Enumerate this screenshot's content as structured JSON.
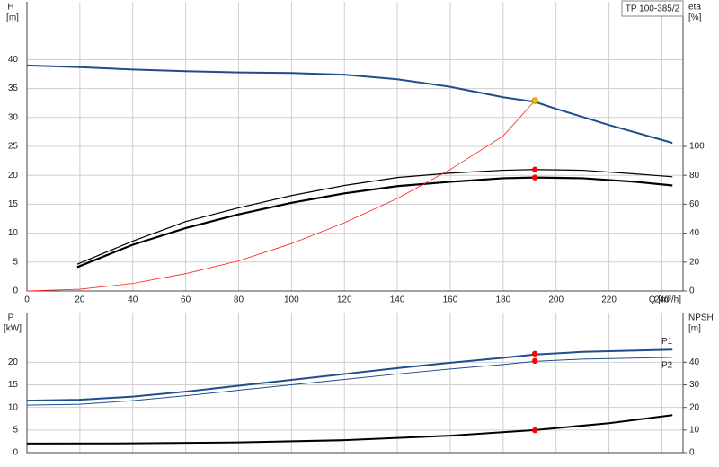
{
  "chart_data": [
    {
      "type": "line",
      "title": "TP 100-385/2",
      "ylabel": "H",
      "yunit": "[m]",
      "y2label": "eta",
      "y2unit": "[%]",
      "xlabel": "Q [m³/h]",
      "xlim": [
        0,
        248
      ],
      "xticks": [
        0,
        20,
        40,
        60,
        80,
        100,
        120,
        140,
        160,
        180,
        200,
        220,
        240
      ],
      "x_tick_labels": true,
      "ylim": [
        0,
        50
      ],
      "yticks": [
        0,
        5,
        10,
        15,
        20,
        25,
        30,
        35,
        40
      ],
      "y2lim": [
        0,
        200
      ],
      "y2ticks": [
        0,
        20,
        40,
        60,
        80,
        100
      ],
      "grid": true,
      "series": [
        {
          "color": "#1f4e8c",
          "width": 2,
          "axis": "y",
          "x": [
            0,
            20,
            40,
            60,
            80,
            100,
            120,
            140,
            160,
            180,
            192,
            200,
            220,
            244
          ],
          "values": [
            39,
            38.7,
            38.3,
            38,
            37.8,
            37.7,
            37.4,
            36.6,
            35.3,
            33.5,
            32.7,
            31.5,
            28.7,
            25.6
          ]
        },
        {
          "color": "#000000",
          "width": 1.2,
          "axis": "y2",
          "x": [
            19,
            40,
            60,
            80,
            100,
            120,
            140,
            160,
            180,
            192,
            210,
            230,
            244
          ],
          "values": [
            18.5,
            34.5,
            48,
            57.5,
            66,
            73,
            78.5,
            81.5,
            83.5,
            84,
            83.5,
            81,
            79
          ]
        },
        {
          "color": "#000000",
          "width": 2.2,
          "axis": "y2",
          "x": [
            19,
            40,
            60,
            80,
            100,
            120,
            140,
            160,
            180,
            192,
            210,
            230,
            244
          ],
          "values": [
            16.5,
            32,
            43.5,
            53,
            61,
            67.5,
            72.5,
            75.5,
            78,
            78.5,
            78,
            75.5,
            73
          ]
        },
        {
          "color": "#ff2020",
          "width": 0.8,
          "axis": "y",
          "x": [
            0,
            20,
            40,
            60,
            80,
            100,
            120,
            140,
            160,
            180,
            192
          ],
          "values": [
            0,
            0.3,
            1.3,
            3,
            5.2,
            8.2,
            11.8,
            16,
            21,
            26.8,
            32.9
          ]
        }
      ],
      "markers": [
        {
          "x": 192,
          "y": 84,
          "axis": "y2",
          "color": "#ff0000"
        },
        {
          "x": 192,
          "y": 78.5,
          "axis": "y2",
          "color": "#ff0000"
        },
        {
          "x": 192,
          "y": 32.9,
          "axis": "y",
          "color": "#f5c400"
        }
      ]
    },
    {
      "type": "line",
      "ylabel": "P",
      "yunit": "[kW]",
      "y2label": "NPSH",
      "y2unit": "[m]",
      "xlim": [
        0,
        248
      ],
      "xticks": [
        0,
        20,
        40,
        60,
        80,
        100,
        120,
        140,
        160,
        180,
        200,
        220,
        240
      ],
      "x_tick_labels": false,
      "ylim": [
        0,
        31
      ],
      "yticks": [
        0,
        5,
        10,
        15,
        20
      ],
      "y2lim": [
        0,
        62
      ],
      "y2ticks": [
        0,
        10,
        20,
        30,
        40
      ],
      "grid": true,
      "series": [
        {
          "name": "P1",
          "color": "#1f4e8c",
          "width": 2,
          "axis": "y",
          "x": [
            0,
            20,
            40,
            60,
            80,
            100,
            120,
            140,
            160,
            180,
            192,
            210,
            244
          ],
          "values": [
            11.5,
            11.7,
            12.4,
            13.5,
            14.8,
            16.1,
            17.4,
            18.7,
            19.9,
            21,
            21.7,
            22.3,
            22.8
          ]
        },
        {
          "name": "P2",
          "color": "#1f4e8c",
          "width": 1,
          "axis": "y",
          "x": [
            0,
            20,
            40,
            60,
            80,
            100,
            120,
            140,
            160,
            180,
            192,
            210,
            244
          ],
          "values": [
            10.5,
            10.7,
            11.5,
            12.6,
            13.8,
            15,
            16.2,
            17.4,
            18.5,
            19.5,
            20.2,
            20.7,
            21.1
          ]
        },
        {
          "color": "#000000",
          "width": 2,
          "axis": "y2",
          "x": [
            0,
            40,
            80,
            120,
            160,
            192,
            220,
            244
          ],
          "values": [
            4,
            4.1,
            4.5,
            5.5,
            7.5,
            10,
            13,
            16.6
          ]
        }
      ],
      "markers": [
        {
          "x": 192,
          "y": 21.9,
          "axis": "y",
          "color": "#ff0000"
        },
        {
          "x": 192,
          "y": 20.3,
          "axis": "y",
          "color": "#ff0000"
        },
        {
          "x": 192,
          "y": 9.9,
          "axis": "y2",
          "color": "#ff0000"
        }
      ]
    }
  ]
}
